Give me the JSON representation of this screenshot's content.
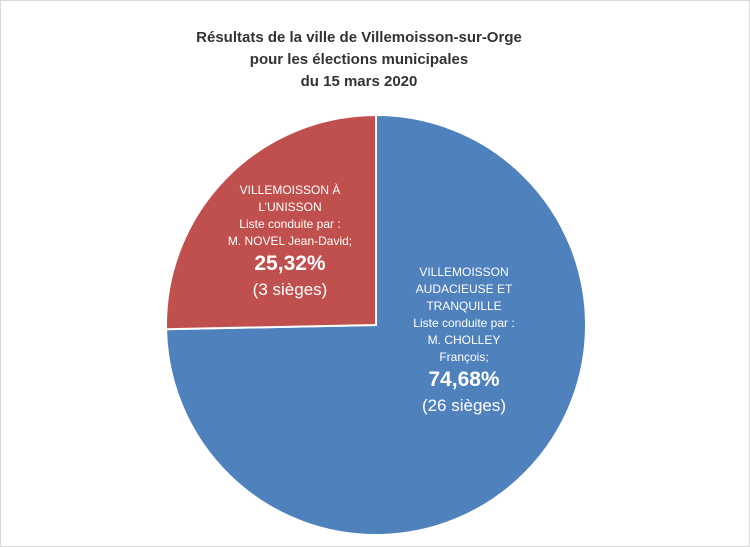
{
  "chart_data": {
    "type": "pie",
    "title": [
      "Résultats de la ville de Villemoisson-sur-Orge",
      "pour les élections municipales",
      "du 15 mars 2020"
    ],
    "categories": [
      "VILLEMOISSON AUDACIEUSE ET TRANQUILLE",
      "VILLEMOISSON À L’UNISSON"
    ],
    "values": [
      74.68,
      25.32
    ],
    "value_labels": [
      "74,68%",
      "25,32%"
    ],
    "colors": [
      "#4f81bd",
      "#c0504d"
    ],
    "leader_intro": [
      "Liste conduite par :",
      "Liste conduite par :"
    ],
    "leaders": [
      "M. CHOLLEY François;",
      "M. NOVEL Jean-David;"
    ],
    "seat_labels": [
      "(26 sièges)",
      "(3 sièges)"
    ]
  }
}
